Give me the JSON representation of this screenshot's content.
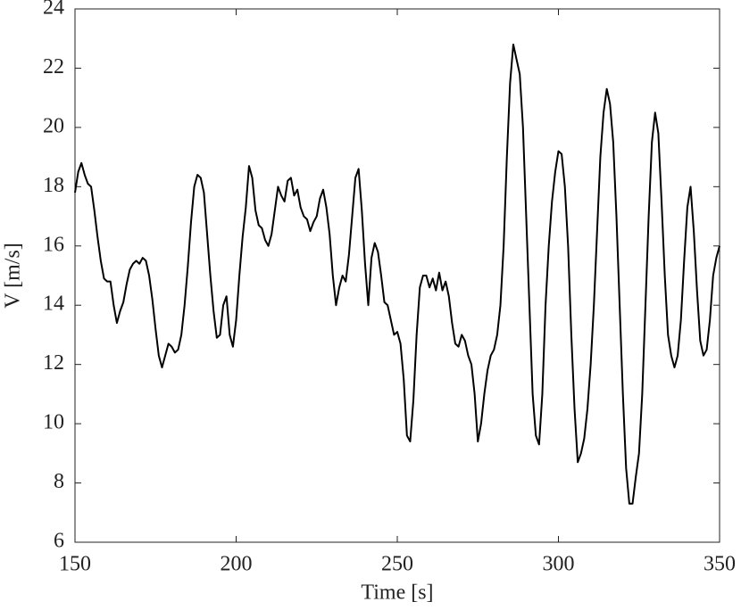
{
  "chart_data": {
    "type": "line",
    "x_label": "Time [s]",
    "y_label": "V [m/s]",
    "x": [
      150,
      151,
      152,
      153,
      154,
      155,
      156,
      157,
      158,
      159,
      160,
      161,
      162,
      163,
      164,
      165,
      166,
      167,
      168,
      169,
      170,
      171,
      172,
      173,
      174,
      175,
      176,
      177,
      178,
      179,
      180,
      181,
      182,
      183,
      184,
      185,
      186,
      187,
      188,
      189,
      190,
      191,
      192,
      193,
      194,
      195,
      196,
      197,
      198,
      199,
      200,
      201,
      202,
      203,
      204,
      205,
      206,
      207,
      208,
      209,
      210,
      211,
      212,
      213,
      214,
      215,
      216,
      217,
      218,
      219,
      220,
      221,
      222,
      223,
      224,
      225,
      226,
      227,
      228,
      229,
      230,
      231,
      232,
      233,
      234,
      235,
      236,
      237,
      238,
      239,
      240,
      241,
      242,
      243,
      244,
      245,
      246,
      247,
      248,
      249,
      250,
      251,
      252,
      253,
      254,
      255,
      256,
      257,
      258,
      259,
      260,
      261,
      262,
      263,
      264,
      265,
      266,
      267,
      268,
      269,
      270,
      271,
      272,
      273,
      274,
      275,
      276,
      277,
      278,
      279,
      280,
      281,
      282,
      283,
      284,
      285,
      286,
      287,
      288,
      289,
      290,
      291,
      292,
      293,
      294,
      295,
      296,
      297,
      298,
      299,
      300,
      301,
      302,
      303,
      304,
      305,
      306,
      307,
      308,
      309,
      310,
      311,
      312,
      313,
      314,
      315,
      316,
      317,
      318,
      319,
      320,
      321,
      322,
      323,
      324,
      325,
      326,
      327,
      328,
      329,
      330,
      331,
      332,
      333,
      334,
      335,
      336,
      337,
      338,
      339,
      340,
      341,
      342,
      343,
      344,
      345,
      346,
      347,
      348,
      349,
      350
    ],
    "series": [
      {
        "name": "V",
        "color": "#000000",
        "values": [
          17.8,
          18.5,
          18.8,
          18.4,
          18.1,
          18.0,
          17.2,
          16.3,
          15.5,
          14.9,
          14.8,
          14.8,
          14.0,
          13.4,
          13.8,
          14.1,
          14.7,
          15.2,
          15.4,
          15.5,
          15.4,
          15.6,
          15.5,
          15.0,
          14.2,
          13.2,
          12.3,
          11.9,
          12.3,
          12.7,
          12.6,
          12.4,
          12.5,
          13.0,
          14.0,
          15.3,
          16.8,
          18.0,
          18.4,
          18.3,
          17.8,
          16.4,
          15.0,
          13.8,
          12.9,
          13.0,
          14.0,
          14.3,
          13.0,
          12.6,
          13.5,
          15.0,
          16.3,
          17.3,
          18.7,
          18.3,
          17.2,
          16.7,
          16.6,
          16.2,
          16.0,
          16.4,
          17.2,
          18.0,
          17.7,
          17.5,
          18.2,
          18.3,
          17.7,
          17.9,
          17.3,
          17.0,
          16.9,
          16.5,
          16.8,
          17.0,
          17.6,
          17.9,
          17.3,
          16.4,
          15.0,
          14.0,
          14.6,
          15.0,
          14.8,
          15.7,
          17.0,
          18.3,
          18.6,
          17.2,
          15.4,
          14.0,
          15.6,
          16.1,
          15.8,
          15.0,
          14.1,
          14.0,
          13.5,
          13.0,
          13.1,
          12.7,
          11.5,
          9.6,
          9.4,
          10.8,
          13.0,
          14.6,
          15.0,
          15.0,
          14.6,
          14.9,
          14.5,
          15.1,
          14.5,
          14.8,
          14.3,
          13.4,
          12.7,
          12.6,
          13.0,
          12.8,
          12.3,
          12.0,
          11.0,
          9.4,
          10.0,
          11.0,
          11.8,
          12.3,
          12.5,
          13.0,
          14.0,
          16.0,
          19.0,
          21.5,
          22.8,
          22.3,
          21.8,
          20.0,
          17.0,
          14.0,
          11.0,
          9.6,
          9.3,
          11.0,
          14.0,
          16.0,
          17.5,
          18.5,
          19.2,
          19.1,
          18.0,
          16.0,
          13.0,
          10.5,
          8.7,
          9.0,
          9.5,
          10.5,
          12.0,
          14.0,
          16.5,
          19.0,
          20.5,
          21.3,
          20.8,
          19.5,
          17.0,
          14.0,
          11.0,
          8.5,
          7.3,
          7.3,
          8.2,
          9.0,
          11.0,
          14.0,
          17.0,
          19.5,
          20.5,
          19.8,
          17.5,
          15.0,
          13.0,
          12.3,
          11.9,
          12.3,
          13.5,
          15.5,
          17.3,
          18.0,
          16.5,
          14.5,
          12.8,
          12.3,
          12.5,
          13.5,
          15.0,
          15.6,
          16.0
        ]
      }
    ],
    "xlim": [
      150,
      350
    ],
    "xticks": [
      150,
      200,
      250,
      300,
      350
    ],
    "ylim": [
      6,
      24
    ],
    "yticks": [
      6,
      8,
      10,
      12,
      14,
      16,
      18,
      20,
      22,
      24
    ],
    "grid": false
  }
}
